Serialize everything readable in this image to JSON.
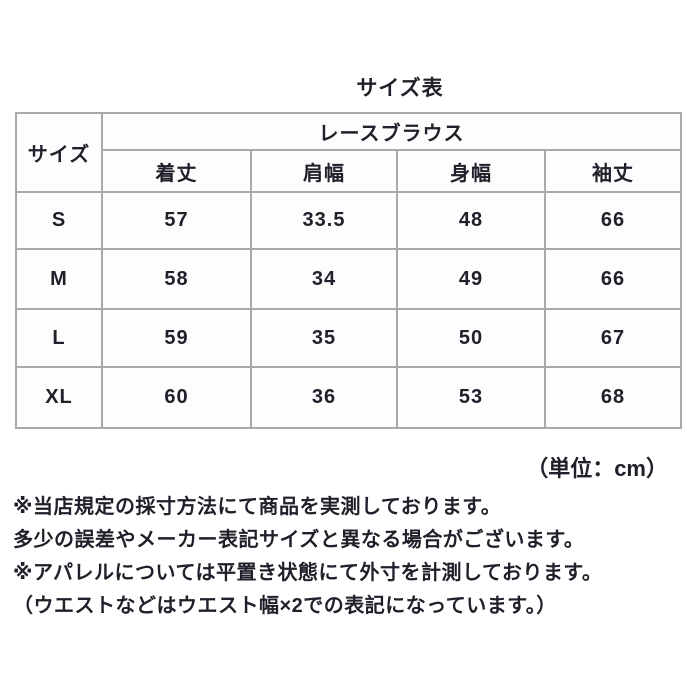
{
  "page": {
    "background_color": "#ffffff",
    "text_color": "#20202a",
    "border_color": "#a9a9a9"
  },
  "title": "サイズ表",
  "table": {
    "corner_header": "サイズ",
    "product_header": "レースブラウス",
    "measurement_headers": [
      "着丈",
      "肩幅",
      "身幅",
      "袖丈"
    ],
    "rows": [
      {
        "size": "S",
        "values": [
          "57",
          "33.5",
          "48",
          "66"
        ]
      },
      {
        "size": "M",
        "values": [
          "58",
          "34",
          "49",
          "66"
        ]
      },
      {
        "size": "L",
        "values": [
          "59",
          "35",
          "50",
          "67"
        ]
      },
      {
        "size": "XL",
        "values": [
          "60",
          "36",
          "53",
          "68"
        ]
      }
    ]
  },
  "unit_label": "（単位：cm）",
  "notes": [
    "※当店規定の採寸方法にて商品を実測しております。",
    "多少の誤差やメーカー表記サイズと異なる場合がございます。",
    "※アパレルについては平置き状態にて外寸を計測しております。",
    "（ウエストなどはウエスト幅×2での表記になっています。）"
  ]
}
